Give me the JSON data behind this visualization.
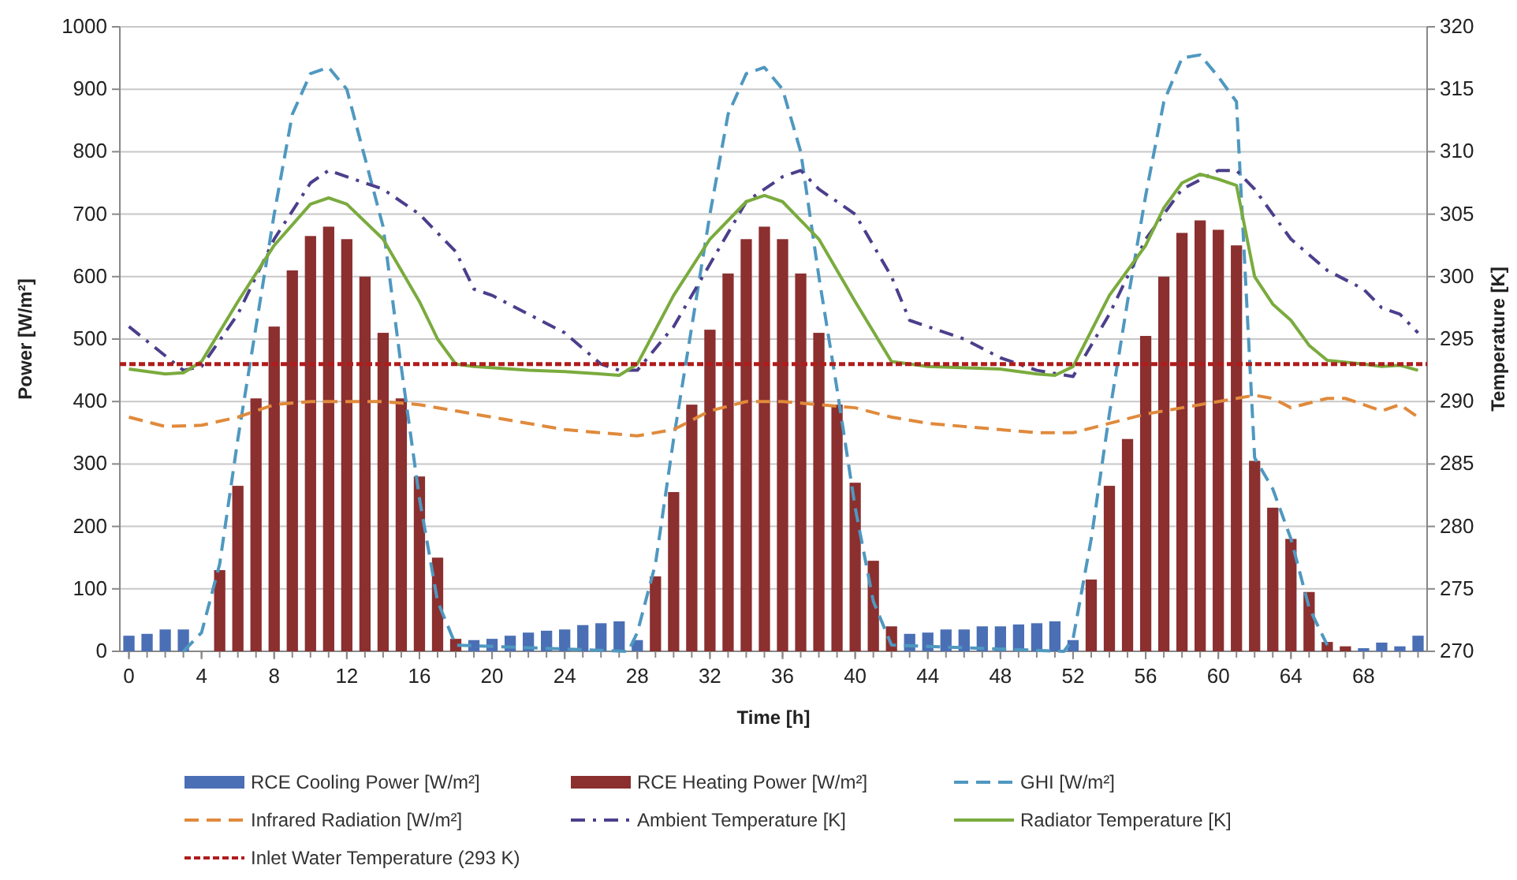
{
  "chart_data": {
    "type": "bar",
    "xlabel": "Time [h]",
    "ylabel": "Power [W/m²]",
    "y2label": "Temperature [K]",
    "x": [
      0,
      1,
      2,
      3,
      4,
      5,
      6,
      7,
      8,
      9,
      10,
      11,
      12,
      13,
      14,
      15,
      16,
      17,
      18,
      19,
      20,
      21,
      22,
      23,
      24,
      25,
      26,
      27,
      28,
      29,
      30,
      31,
      32,
      33,
      34,
      35,
      36,
      37,
      38,
      39,
      40,
      41,
      42,
      43,
      44,
      45,
      46,
      47,
      48,
      49,
      50,
      51,
      52,
      53,
      54,
      55,
      56,
      57,
      58,
      59,
      60,
      61,
      62,
      63,
      64,
      65,
      66,
      67,
      68,
      69,
      70,
      71
    ],
    "xlim": [
      -0.5,
      71.5
    ],
    "xticks": [
      0,
      4,
      8,
      12,
      16,
      20,
      24,
      28,
      32,
      36,
      40,
      44,
      48,
      52,
      56,
      60,
      64,
      68
    ],
    "ylim": [
      0,
      1000
    ],
    "yticks": [
      0,
      100,
      200,
      300,
      400,
      500,
      600,
      700,
      800,
      900,
      1000
    ],
    "y2lim": [
      270,
      320
    ],
    "y2ticks": [
      270,
      275,
      280,
      285,
      290,
      295,
      300,
      305,
      310,
      315,
      320
    ],
    "grid": "y",
    "legend": "bottom",
    "series": [
      {
        "name": "RCE Cooling Power [W/m²]",
        "color": "#4a6fb5",
        "values": [
          25,
          28,
          35,
          35,
          null,
          null,
          null,
          null,
          null,
          null,
          null,
          null,
          null,
          null,
          null,
          null,
          null,
          null,
          null,
          18,
          20,
          25,
          30,
          33,
          35,
          42,
          45,
          48,
          18,
          null,
          null,
          null,
          null,
          null,
          null,
          null,
          null,
          null,
          null,
          null,
          null,
          null,
          null,
          28,
          30,
          35,
          35,
          40,
          40,
          43,
          45,
          48,
          18,
          null,
          null,
          null,
          null,
          null,
          null,
          null,
          null,
          null,
          null,
          null,
          null,
          null,
          null,
          null,
          5,
          14,
          8,
          25
        ]
      },
      {
        "name": "RCE Heating Power [W/m²]",
        "color": "#8b2f2f",
        "values": [
          null,
          null,
          null,
          null,
          null,
          130,
          265,
          405,
          520,
          610,
          665,
          680,
          660,
          600,
          510,
          405,
          280,
          150,
          20,
          null,
          null,
          null,
          null,
          null,
          null,
          null,
          null,
          null,
          null,
          120,
          255,
          395,
          515,
          605,
          660,
          680,
          660,
          605,
          510,
          395,
          270,
          145,
          40,
          null,
          null,
          null,
          null,
          null,
          null,
          null,
          null,
          null,
          null,
          115,
          265,
          340,
          505,
          600,
          670,
          690,
          675,
          650,
          305,
          230,
          180,
          95,
          15,
          8,
          null,
          null,
          null,
          null
        ]
      },
      {
        "name": "GHI [W/m²]",
        "type": "line",
        "line_style": "dashed",
        "color": "#4f98c0",
        "x": [
          3,
          4,
          5,
          6,
          7,
          8,
          9,
          10,
          11,
          12,
          13,
          14,
          15,
          16,
          17,
          18,
          27.5,
          28,
          29,
          30,
          31,
          32,
          33,
          34,
          35,
          36,
          37,
          38,
          39,
          40,
          41,
          42,
          51.5,
          52,
          53,
          54,
          55,
          56,
          57,
          58,
          59,
          60,
          61,
          62,
          63,
          64,
          65,
          66
        ],
        "values": [
          0,
          30,
          140,
          340,
          520,
          700,
          860,
          925,
          935,
          900,
          790,
          680,
          455,
          245,
          80,
          10,
          0,
          30,
          140,
          340,
          520,
          700,
          860,
          925,
          935,
          900,
          800,
          600,
          420,
          230,
          80,
          10,
          0,
          20,
          180,
          380,
          560,
          730,
          880,
          950,
          955,
          920,
          880,
          310,
          260,
          180,
          70,
          10
        ]
      },
      {
        "name": "Infrared Radiation [W/m²]",
        "type": "line",
        "line_style": "dashed",
        "color": "#e08a3c",
        "x": [
          0,
          2,
          4,
          6,
          8,
          10,
          12,
          14,
          16,
          18,
          20,
          22,
          24,
          26,
          28,
          30,
          32,
          34,
          36,
          38,
          40,
          42,
          44,
          46,
          48,
          50,
          52,
          54,
          56,
          58,
          60,
          62,
          63,
          64,
          66,
          67,
          68,
          69,
          70,
          71
        ],
        "values": [
          375,
          360,
          362,
          375,
          395,
          400,
          400,
          400,
          395,
          385,
          375,
          365,
          355,
          350,
          345,
          355,
          385,
          400,
          400,
          395,
          390,
          375,
          365,
          360,
          355,
          350,
          350,
          365,
          380,
          390,
          400,
          410,
          405,
          390,
          405,
          405,
          395,
          385,
          395,
          375
        ]
      },
      {
        "name": "Ambient Temperature [K]",
        "type": "line",
        "axis": "y2",
        "line_style": "dashdot",
        "color": "#4b3f8c",
        "x": [
          0,
          3,
          4,
          6,
          8,
          10,
          11,
          12,
          14,
          16,
          18,
          19,
          20,
          22,
          24,
          26,
          27,
          28,
          30,
          32,
          34,
          36,
          37,
          38,
          40,
          42,
          43,
          44,
          46,
          48,
          50,
          52,
          54,
          56,
          58,
          60,
          61,
          62,
          64,
          66,
          68,
          69,
          70,
          71
        ],
        "values": [
          296,
          292.5,
          292.8,
          297,
          303,
          307.5,
          308.5,
          308,
          307,
          305,
          302,
          299,
          298.5,
          297,
          295.5,
          293,
          292.5,
          292.5,
          296,
          301,
          306,
          308,
          308.5,
          307,
          305,
          300,
          296.5,
          296,
          295,
          293.5,
          292.5,
          292,
          297,
          303,
          307,
          308.5,
          308.5,
          307,
          303,
          300.5,
          299,
          297.5,
          297,
          295.5
        ]
      },
      {
        "name": "Radiator Temperature [K]",
        "type": "line",
        "axis": "y2",
        "line_style": "solid",
        "color": "#7aab3e",
        "x": [
          0,
          2,
          3,
          4,
          6,
          8,
          10,
          11,
          12,
          14,
          16,
          17,
          18,
          19,
          22,
          24,
          26,
          27,
          28,
          30,
          32,
          34,
          35,
          36,
          38,
          40,
          42,
          44,
          48,
          50,
          51,
          52,
          54,
          56,
          57,
          58,
          59,
          60,
          61,
          62,
          63,
          64,
          65,
          66,
          68,
          69,
          70,
          71
        ],
        "values": [
          292.6,
          292.2,
          292.3,
          293.2,
          298,
          302.5,
          305.8,
          306.3,
          305.8,
          303,
          298,
          295,
          293,
          292.8,
          292.5,
          292.4,
          292.2,
          292.1,
          293,
          298.5,
          303,
          306,
          306.5,
          306,
          303,
          298,
          293.2,
          292.8,
          292.6,
          292.2,
          292.1,
          292.8,
          298.5,
          302.5,
          305.5,
          307.5,
          308.2,
          307.8,
          307.3,
          300,
          297.8,
          296.5,
          294.5,
          293.3,
          293,
          292.8,
          292.9,
          292.5
        ]
      },
      {
        "name": "Inlet Water Temperature (293 K)",
        "type": "line",
        "axis": "y2",
        "line_style": "dotted",
        "color": "#b01c1c",
        "x": [
          -0.5,
          71.5
        ],
        "values": [
          293,
          293
        ]
      }
    ]
  }
}
